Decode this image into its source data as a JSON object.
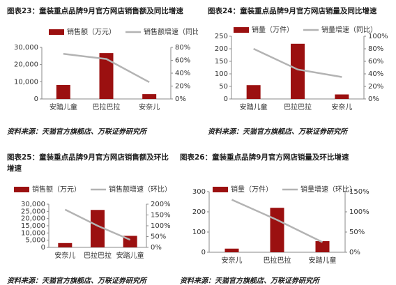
{
  "chart_data": [
    {
      "type": "bar-line",
      "title": "图表23：童装重点品牌9月官方网店销售额及同比增速",
      "categories": [
        "安踏儿童",
        "巴拉巴拉",
        "安奈儿"
      ],
      "series": [
        {
          "name": "销售额（万元）",
          "color": "#9b1010",
          "values": [
            8100,
            26700,
            2800
          ]
        },
        {
          "name": "销售额增速（同比）",
          "color": "#b3b3b3",
          "axis": "y2",
          "values": [
            70,
            62,
            26
          ]
        }
      ],
      "ylim": [
        0,
        30000
      ],
      "yticks": [
        0,
        {
          "value": 10000,
          "label": "10,000"
        },
        {
          "value": 20000,
          "label": "20,000"
        },
        {
          "value": 30000,
          "label": "30,000"
        }
      ],
      "y2lim": [
        0,
        80
      ],
      "y2ticks": [
        {
          "value": 0,
          "label": "0%"
        },
        {
          "value": 20,
          "label": "20%"
        },
        {
          "value": 40,
          "label": "40%"
        },
        {
          "value": 60,
          "label": "60%"
        },
        {
          "value": 80,
          "label": "80%"
        }
      ],
      "source": "资料来源：天猫官方旗舰店、万联证券研究所"
    },
    {
      "type": "bar-line",
      "title": "图表24：童装重点品牌9月官方网店销量及同比增速",
      "categories": [
        "安踏儿童",
        "巴拉巴拉",
        "安奈儿"
      ],
      "series": [
        {
          "name": "销量（万件）",
          "color": "#9b1010",
          "values": [
            55,
            220,
            18
          ]
        },
        {
          "name": "销量增速（同比）",
          "color": "#b3b3b3",
          "axis": "y2",
          "values": [
            80,
            47,
            35
          ]
        }
      ],
      "ylim": [
        0,
        250
      ],
      "yticks": [
        0,
        50,
        100,
        150,
        200,
        250
      ],
      "y2lim": [
        0,
        100
      ],
      "y2ticks": [
        {
          "value": 0,
          "label": "0%"
        },
        {
          "value": 20,
          "label": "20%"
        },
        {
          "value": 40,
          "label": "40%"
        },
        {
          "value": 60,
          "label": "60%"
        },
        {
          "value": 80,
          "label": "80%"
        },
        {
          "value": 100,
          "label": "100%"
        }
      ],
      "source": "资料来源：天猫官方旗舰店、万联证券研究所"
    },
    {
      "type": "bar-line",
      "title": "图表25：童装重点品牌9月官方网店销售额及环比增速",
      "categories": [
        "安奈儿",
        "巴拉巴拉",
        "安踏儿童"
      ],
      "series": [
        {
          "name": "销售额（万元）",
          "color": "#9b1010",
          "values": [
            3000,
            26000,
            8000
          ]
        },
        {
          "name": "销售额增速（环比）",
          "color": "#b3b3b3",
          "axis": "y2",
          "values": [
            175,
            100,
            35
          ]
        }
      ],
      "ylim": [
        0,
        30000
      ],
      "yticks": [
        0,
        {
          "value": 5000,
          "label": "5,000"
        },
        {
          "value": 10000,
          "label": "10,000"
        },
        {
          "value": 15000,
          "label": "15,000"
        },
        {
          "value": 20000,
          "label": "20,000"
        },
        {
          "value": 25000,
          "label": "25,000"
        },
        {
          "value": 30000,
          "label": "30,000"
        }
      ],
      "y2lim": [
        0,
        200
      ],
      "y2ticks": [
        {
          "value": 0,
          "label": "0%"
        },
        {
          "value": 50,
          "label": "50%"
        },
        {
          "value": 100,
          "label": "100%"
        },
        {
          "value": 150,
          "label": "150%"
        },
        {
          "value": 200,
          "label": "200%"
        }
      ],
      "source": "资料来源：天猫官方旗舰店、万联证券研究所"
    },
    {
      "type": "bar-line",
      "title": "图表26：童装重点品牌9月官方网店销量及环比增速",
      "categories": [
        "安奈儿",
        "巴拉巴拉",
        "安踏儿童"
      ],
      "series": [
        {
          "name": "销量（万件）",
          "color": "#9b1010",
          "values": [
            18,
            220,
            55
          ]
        },
        {
          "name": "销量增速（环比）",
          "color": "#b3b3b3",
          "axis": "y2",
          "values": [
            130,
            80,
            25
          ]
        }
      ],
      "ylim": [
        0,
        300
      ],
      "yticks": [
        0,
        100,
        200,
        300
      ],
      "y2lim": [
        0,
        150
      ],
      "y2ticks": [
        {
          "value": 0,
          "label": "0%"
        },
        {
          "value": 50,
          "label": "50%"
        },
        {
          "value": 100,
          "label": "100%"
        },
        {
          "value": 150,
          "label": "150%"
        }
      ],
      "source": "资料来源：天猫官方旗舰店、万联证券研究所"
    }
  ]
}
